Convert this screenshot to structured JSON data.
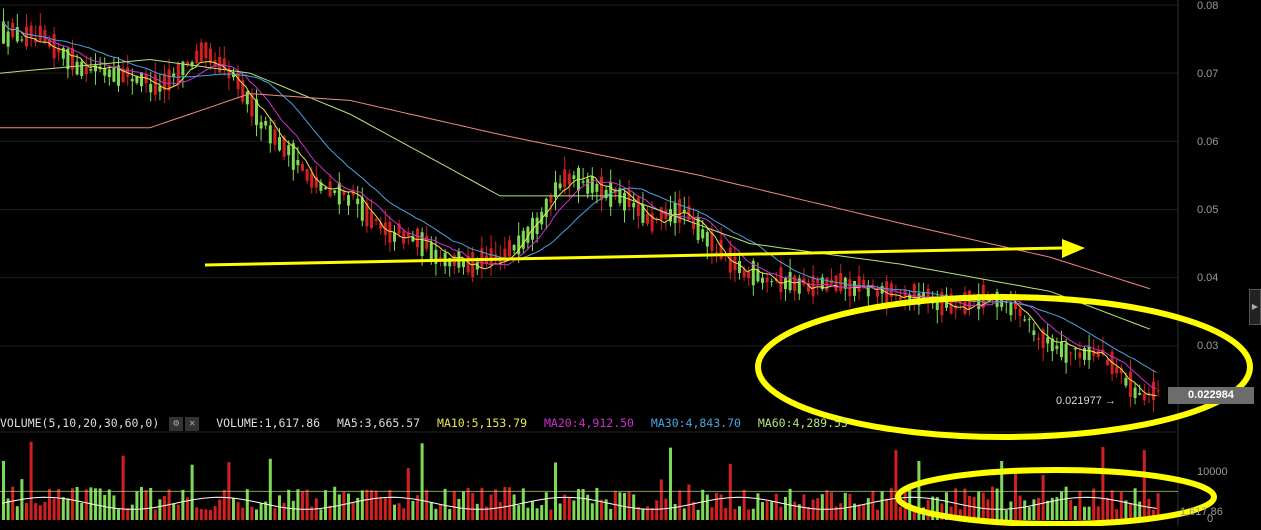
{
  "indicator": {
    "title": "VOLUME(5,10,20,30,60,0)",
    "settings_icon": "gear-icon",
    "close_icon": "close-icon",
    "volume": "VOLUME:1,617.86",
    "ma5": "MA5:3,665.57",
    "ma10": "MA10:5,153.79",
    "ma20": "MA20:4,912.50",
    "ma30": "MA30:4,843.70",
    "ma60": "MA60:4,289.55"
  },
  "price_axis": {
    "ticks": [
      "0.08",
      "0.07",
      "0.06",
      "0.05",
      "0.04",
      "0.03"
    ]
  },
  "volume_axis": {
    "ticks": [
      "10000",
      "0"
    ]
  },
  "current_price": "0.022984",
  "low_marker": "0.021977 →",
  "volume_current_label": "1,617.86",
  "colors": {
    "up": "#7ed957",
    "down": "#d22020",
    "ma5": "#ffffff",
    "ma10": "#e8e84a",
    "ma20": "#d030d0",
    "ma30": "#4aa3df",
    "ma60": "#b5e37a",
    "ma_long": "#f08c80",
    "annotation": "#ffff00"
  },
  "chart_data": {
    "type": "candlestick",
    "annotations": [
      "rightward arrow along lows",
      "ellipse around recent price lows",
      "ellipse around recent volume"
    ],
    "price_ylim": [
      0.02,
      0.08
    ],
    "price_path": [
      [
        0,
        0.076
      ],
      [
        40,
        0.075
      ],
      [
        80,
        0.071
      ],
      [
        120,
        0.07
      ],
      [
        160,
        0.068
      ],
      [
        200,
        0.073
      ],
      [
        230,
        0.07
      ],
      [
        260,
        0.063
      ],
      [
        290,
        0.058
      ],
      [
        320,
        0.053
      ],
      [
        350,
        0.052
      ],
      [
        380,
        0.047
      ],
      [
        410,
        0.046
      ],
      [
        440,
        0.043
      ],
      [
        470,
        0.042
      ],
      [
        500,
        0.043
      ],
      [
        530,
        0.047
      ],
      [
        550,
        0.052
      ],
      [
        570,
        0.055
      ],
      [
        600,
        0.053
      ],
      [
        630,
        0.051
      ],
      [
        650,
        0.048
      ],
      [
        680,
        0.05
      ],
      [
        710,
        0.045
      ],
      [
        740,
        0.041
      ],
      [
        770,
        0.04
      ],
      [
        800,
        0.039
      ],
      [
        840,
        0.039
      ],
      [
        880,
        0.038
      ],
      [
        920,
        0.037
      ],
      [
        950,
        0.036
      ],
      [
        980,
        0.037
      ],
      [
        1000,
        0.037
      ],
      [
        1020,
        0.035
      ],
      [
        1040,
        0.031
      ],
      [
        1070,
        0.029
      ],
      [
        1100,
        0.029
      ],
      [
        1125,
        0.025
      ],
      [
        1140,
        0.023
      ],
      [
        1158,
        0.023
      ]
    ],
    "ma_long_path": [
      [
        0,
        0.062
      ],
      [
        150,
        0.062
      ],
      [
        250,
        0.067
      ],
      [
        350,
        0.066
      ],
      [
        500,
        0.061
      ],
      [
        700,
        0.055
      ],
      [
        900,
        0.048
      ],
      [
        1050,
        0.043
      ],
      [
        1158,
        0.038
      ]
    ],
    "ma60_path": [
      [
        0,
        0.07
      ],
      [
        150,
        0.072
      ],
      [
        250,
        0.07
      ],
      [
        350,
        0.064
      ],
      [
        500,
        0.052
      ],
      [
        620,
        0.052
      ],
      [
        750,
        0.045
      ],
      [
        900,
        0.042
      ],
      [
        1050,
        0.038
      ],
      [
        1158,
        0.032
      ]
    ],
    "volume_ylim": [
      0,
      12000
    ]
  }
}
